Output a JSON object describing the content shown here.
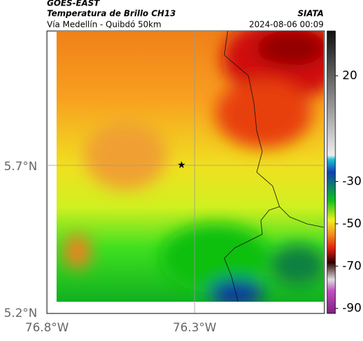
{
  "header": {
    "agency": "GOES-EAST",
    "title": "Temperatura de Brillo CH13",
    "subtitle": "Vía Medellín - Quibdó 50km",
    "brand": "SIATA",
    "timestamp": "2024-08-06 00:09"
  },
  "axes": {
    "y_labels": [
      "5.7°N",
      "5.2°N"
    ],
    "x_labels": [
      "76.8°W",
      "76.3°W"
    ]
  },
  "colorbar": {
    "ticks": [
      20,
      -30,
      -50,
      -70,
      -90
    ]
  }
}
